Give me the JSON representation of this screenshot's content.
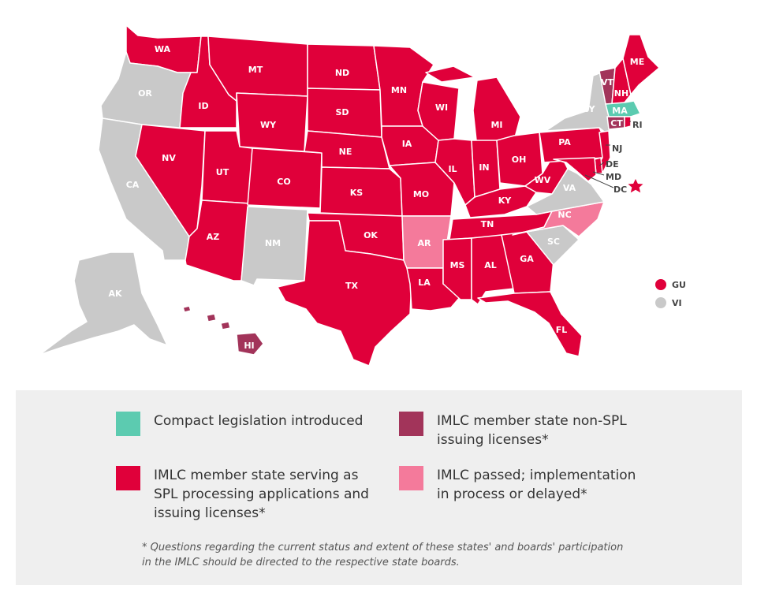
{
  "colors": {
    "member_spl": "#e0003a",
    "member_non_spl": "#a2345a",
    "passed_delayed": "#f47a9b",
    "legislation_introduced": "#5ccbb0",
    "non_member": "#c9c9c9"
  },
  "states": {
    "WA": "WA",
    "OR": "OR",
    "CA": "CA",
    "ID": "ID",
    "NV": "NV",
    "MT": "MT",
    "WY": "WY",
    "UT": "UT",
    "AZ": "AZ",
    "CO": "CO",
    "NM": "NM",
    "ND": "ND",
    "SD": "SD",
    "NE": "NE",
    "KS": "KS",
    "OK": "OK",
    "TX": "TX",
    "MN": "MN",
    "IA": "IA",
    "MO": "MO",
    "AR": "AR",
    "LA": "LA",
    "WI": "WI",
    "IL": "IL",
    "MS": "MS",
    "MI": "MI",
    "IN": "IN",
    "KY": "KY",
    "TN": "TN",
    "AL": "AL",
    "OH": "OH",
    "GA": "GA",
    "FL": "FL",
    "SC": "SC",
    "NC": "NC",
    "VA": "VA",
    "WV": "WV",
    "PA": "PA",
    "NY": "NY",
    "VT": "VT",
    "NH": "NH",
    "ME": "ME",
    "MA": "MA",
    "CT": "CT",
    "RI": "RI",
    "NJ": "NJ",
    "DE": "DE",
    "MD": "MD",
    "DC": "DC",
    "AK": "AK",
    "HI": "HI"
  },
  "territories": {
    "GU": "GU",
    "VI": "VI"
  },
  "legend": {
    "legislation_introduced": "Compact legislation introduced",
    "member_non_spl": "IMLC member state non-SPL\nissuing licenses*",
    "member_spl": "IMLC member state serving as\nSPL processing applications and\nissuing licenses*",
    "passed_delayed": "IMLC passed; implementation\nin process or delayed*"
  },
  "footnote": "* Questions regarding the current status and extent of these states' and boards' participation\nin the IMLC should be directed to the respective state boards."
}
